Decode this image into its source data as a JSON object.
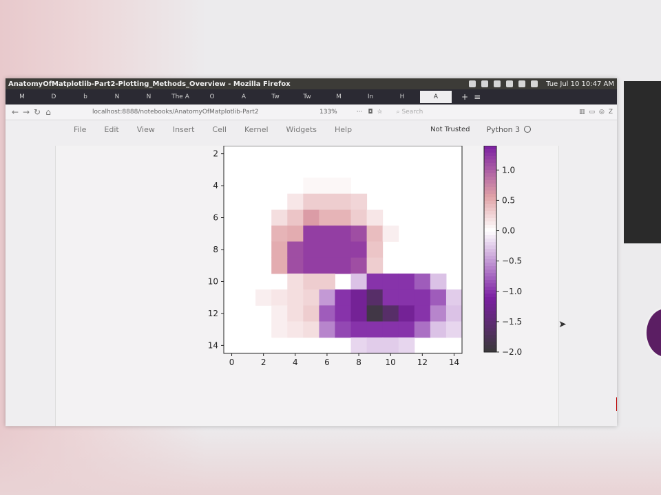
{
  "window": {
    "title": "AnatomyOfMatplotlib-Part2-Plotting_Methods_Overview - Mozilla Firefox",
    "clock": "Tue Jul 10 10:47 AM"
  },
  "tabs": [
    "M",
    "D",
    "b",
    "N",
    "N",
    "The A",
    "O",
    "A",
    "Tw",
    "Tw",
    "M",
    "In",
    "H",
    "A"
  ],
  "nav": {
    "url": "localhost:8888/notebooks/AnatomyOfMatplotlib-Part2",
    "zoom": "133%",
    "search_placeholder": "Search",
    "more": "···"
  },
  "jupyter": {
    "menu": [
      "File",
      "Edit",
      "View",
      "Insert",
      "Cell",
      "Kernel",
      "Widgets",
      "Help"
    ],
    "trust": "Not Trusted",
    "kernel": "Python 3"
  },
  "colors": {
    "positive": "#7b1fa2",
    "negative_low": "#3a3a3a",
    "mid": "#ffffff",
    "pink": "#e0a2a6"
  },
  "chart_data": {
    "type": "heatmap",
    "xlim": [
      -0.5,
      14.5
    ],
    "ylim": [
      14.5,
      1.5
    ],
    "xticks": [
      0,
      2,
      4,
      6,
      8,
      10,
      12,
      14
    ],
    "yticks": [
      2,
      4,
      6,
      8,
      10,
      12,
      14
    ],
    "colorbar": {
      "ticks": [
        1.0,
        0.5,
        0.0,
        -0.5,
        -1.0,
        -1.5,
        -2.0
      ],
      "range": [
        -2.0,
        1.4
      ]
    },
    "grid_rows_start": 2,
    "grid": [
      [
        0,
        0,
        0,
        0,
        0,
        0,
        0,
        0,
        0,
        0,
        0,
        0,
        0,
        0,
        0
      ],
      [
        0,
        0,
        0,
        0,
        0,
        0,
        0,
        0,
        0,
        0,
        0,
        0,
        0,
        0,
        0
      ],
      [
        0,
        0,
        0,
        0,
        0,
        0.05,
        0.05,
        0.05,
        0,
        0,
        0,
        0,
        0,
        0,
        0
      ],
      [
        0,
        0,
        0,
        0,
        0.15,
        0.3,
        0.3,
        0.3,
        0.25,
        0,
        0,
        0,
        0,
        0,
        0
      ],
      [
        0,
        0,
        0,
        0.2,
        0.35,
        0.6,
        0.45,
        0.45,
        0.3,
        0.15,
        0,
        0,
        0,
        0,
        0
      ],
      [
        0,
        0,
        0,
        0.45,
        0.5,
        1.2,
        1.2,
        1.2,
        1.1,
        0.4,
        0.1,
        0,
        0,
        0,
        0
      ],
      [
        0,
        0,
        0,
        0.5,
        1.1,
        1.2,
        1.2,
        1.2,
        1.2,
        0.35,
        0,
        0,
        0,
        0,
        0
      ],
      [
        0,
        0,
        0,
        0.5,
        1.1,
        1.2,
        1.2,
        1.2,
        1.1,
        0.3,
        0,
        0,
        0,
        0,
        0
      ],
      [
        0,
        0,
        0,
        0,
        0.2,
        0.3,
        0.3,
        0,
        -0.3,
        -1.0,
        -1.0,
        -1.0,
        -0.8,
        -0.3,
        0
      ],
      [
        0,
        0,
        0.1,
        0.15,
        0.2,
        0.25,
        -0.5,
        -1.0,
        -1.2,
        -1.6,
        -1.0,
        -1.0,
        -1.0,
        -0.8,
        -0.25
      ],
      [
        0,
        0,
        0,
        0.1,
        0.2,
        0.3,
        -0.8,
        -1.0,
        -1.2,
        -1.9,
        -1.6,
        -1.2,
        -1.0,
        -0.6,
        -0.3
      ],
      [
        0,
        0,
        0,
        0.1,
        0.15,
        0.2,
        -0.6,
        -0.9,
        -1.0,
        -1.0,
        -1.0,
        -1.0,
        -0.7,
        -0.3,
        -0.2
      ],
      [
        0,
        0,
        0,
        0,
        0,
        0,
        0,
        0,
        -0.2,
        -0.25,
        -0.25,
        -0.2,
        0,
        0,
        0
      ]
    ]
  }
}
